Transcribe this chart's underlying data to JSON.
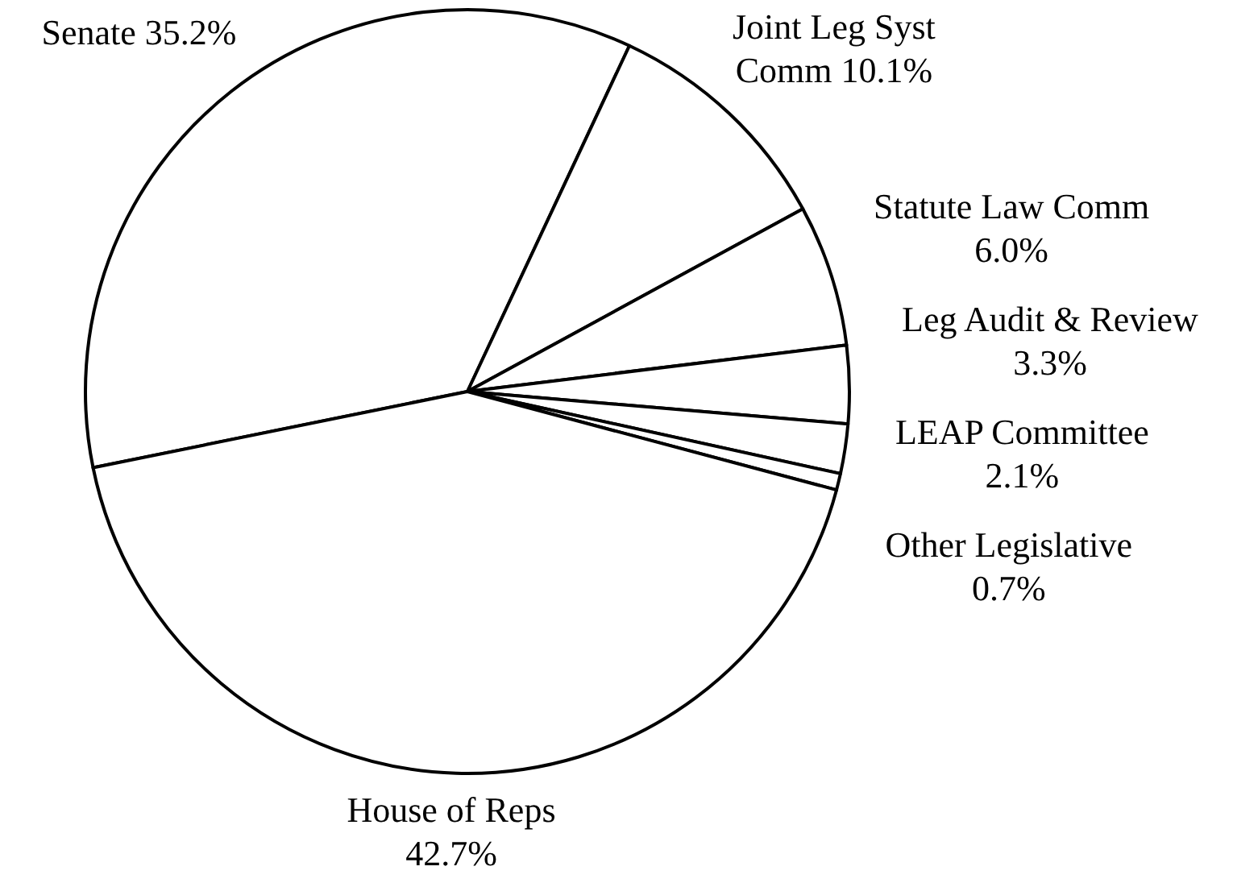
{
  "chart_data": {
    "type": "pie",
    "categories": [
      "Senate",
      "Joint Leg Syst Comm",
      "Statute Law Comm",
      "Leg Audit & Review",
      "LEAP Committee",
      "Other Legislative",
      "House of Reps"
    ],
    "values": [
      35.2,
      10.1,
      6.0,
      3.3,
      2.1,
      0.7,
      42.7
    ],
    "value_labels": [
      "35.2%",
      "10.1%",
      "6.0%",
      "3.3%",
      "2.1%",
      "0.7%",
      "42.7%"
    ],
    "colors": [
      "#ffffff",
      "#ffffff",
      "#ffffff",
      "#ffffff",
      "#ffffff",
      "#ffffff",
      "#ffffff"
    ]
  }
}
